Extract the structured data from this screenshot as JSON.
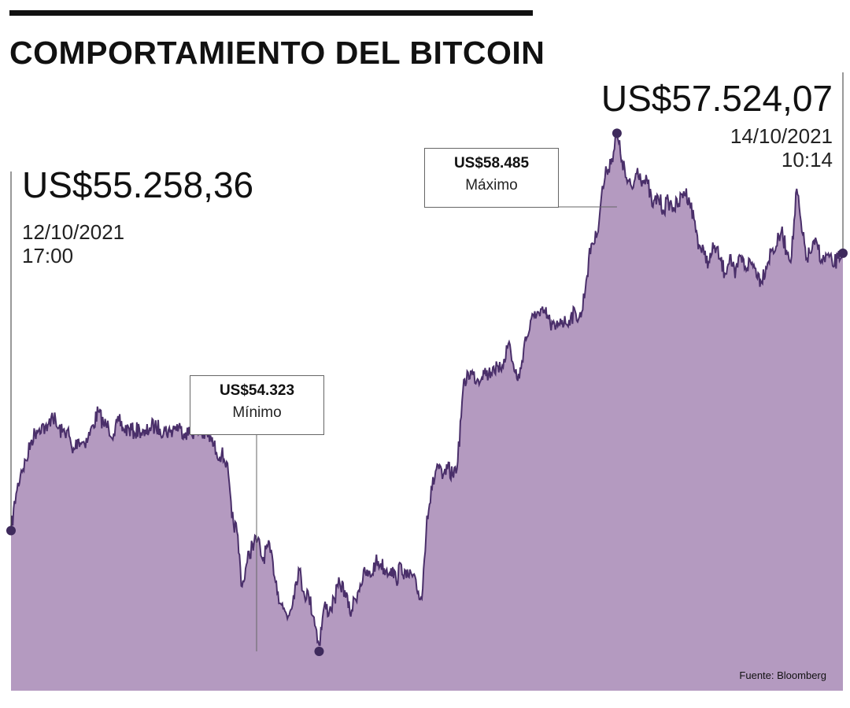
{
  "title": "COMPORTAMIENTO DEL BITCOIN",
  "source": "Fuente: Bloomberg",
  "colors": {
    "area": "#b49ac0",
    "line": "#4a2f6a",
    "marker": "#3e2a5c",
    "rule": "#111111"
  },
  "annotations": {
    "start": {
      "price": "US$55.258,36",
      "date": "12/10/2021",
      "time": "17:00"
    },
    "end": {
      "price": "US$57.524,07",
      "date": "14/10/2021",
      "time": "10:14"
    },
    "max": {
      "value": "US$58.485",
      "label": "Máximo"
    },
    "min": {
      "value": "US$54.323",
      "label": "Mínimo"
    }
  },
  "chart_data": {
    "type": "area",
    "x_start": "12/10/2021 17:00",
    "x_end": "14/10/2021 10:14",
    "ylim": [
      53950,
      58950
    ],
    "values": [
      55258,
      55560,
      55750,
      55830,
      56000,
      56080,
      56120,
      56070,
      56220,
      56100,
      56060,
      56080,
      55890,
      56000,
      55980,
      56010,
      56120,
      56230,
      56130,
      56100,
      56050,
      56150,
      56080,
      56090,
      56060,
      56090,
      56030,
      56100,
      56110,
      56090,
      56080,
      56060,
      56110,
      56090,
      56060,
      56050,
      56090,
      56050,
      56040,
      56000,
      55900,
      55880,
      55820,
      55360,
      55250,
      54800,
      55000,
      55150,
      55180,
      55020,
      55130,
      55000,
      54750,
      54620,
      54560,
      54730,
      54950,
      54760,
      54720,
      54550,
      54323,
      54640,
      54600,
      54700,
      54830,
      54770,
      54580,
      54700,
      54820,
      54910,
      54880,
      55000,
      54990,
      54930,
      54950,
      54850,
      54980,
      54870,
      54900,
      54780,
      54700,
      55380,
      55600,
      55800,
      55680,
      55760,
      55710,
      55820,
      56400,
      56550,
      56530,
      56490,
      56570,
      56530,
      56600,
      56550,
      56660,
      56800,
      56560,
      56500,
      56800,
      56900,
      57050,
      57010,
      57040,
      56950,
      56900,
      56990,
      56950,
      57010,
      57030,
      57000,
      57300,
      57600,
      57650,
      58000,
      58200,
      58300,
      58485,
      58280,
      58100,
      58050,
      58220,
      58120,
      58090,
      57900,
      57990,
      57880,
      57950,
      57900,
      57920,
      58030,
      57980,
      57800,
      57590,
      57510,
      57450,
      57590,
      57480,
      57360,
      57510,
      57320,
      57500,
      57410,
      57450,
      57400,
      57300,
      57410,
      57540,
      57580,
      57700,
      57550,
      57500,
      58050,
      57700,
      57480,
      57560,
      57600,
      57450,
      57510,
      57420,
      57480,
      57524
    ]
  }
}
